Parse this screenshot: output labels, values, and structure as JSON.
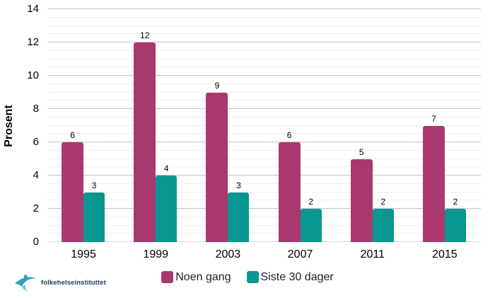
{
  "chart_data": {
    "type": "bar",
    "title": "",
    "categories": [
      "1995",
      "1999",
      "2003",
      "2007",
      "2011",
      "2015"
    ],
    "series": [
      {
        "name": "Noen gang",
        "color": "#a9386f",
        "values": [
          6,
          12,
          9,
          6,
          5,
          7
        ]
      },
      {
        "name": "Siste 30 dager",
        "color": "#089690",
        "values": [
          3,
          4,
          3,
          2,
          2,
          2
        ]
      }
    ],
    "xlabel": "",
    "ylabel": "Prosent",
    "ylim": [
      0,
      14
    ],
    "y_major_ticks": [
      0,
      2,
      4,
      6,
      8,
      10,
      12,
      14
    ],
    "y_minor_step": 0.5,
    "grid": true,
    "data_labels": true,
    "legend_position": "bottom",
    "colors": {
      "major_grid": "#c3c3c3",
      "minor_grid": "#efefef",
      "axis_line": "#d9d9d9",
      "background": "#ffffff"
    }
  },
  "logo": {
    "icon": "fhi-swoosh-icon",
    "text": "folkehelseinstituttet",
    "icon_color": "#2f9fc0",
    "icon_accent": "#7cc6dc",
    "text_color": "#1d3a5f"
  }
}
